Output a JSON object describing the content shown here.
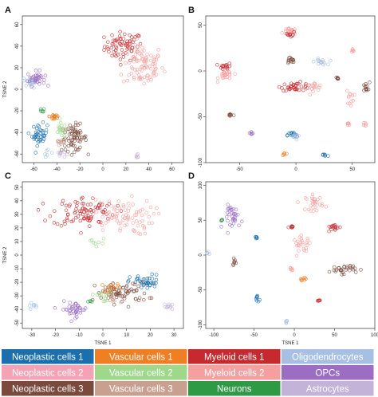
{
  "chart_data": [
    {
      "type": "scatter",
      "panel": "A",
      "xlabel": "",
      "ylabel": "TSNE 2",
      "xlim": [
        -70,
        70
      ],
      "ylim": [
        -68,
        68
      ],
      "xticks": [
        -60,
        -40,
        -20,
        0,
        20,
        40,
        60
      ],
      "yticks": [
        -60,
        -40,
        -20,
        0,
        20,
        40,
        60
      ],
      "clusters": [
        {
          "cell_type": "Myeloid cells 1",
          "center": [
            18,
            40
          ],
          "spread": [
            15,
            12
          ],
          "n": 70
        },
        {
          "cell_type": "Myeloid cells 2",
          "center": [
            35,
            22
          ],
          "spread": [
            16,
            18
          ],
          "n": 90
        },
        {
          "cell_type": "Oligodendrocytes",
          "center": [
            -63,
            7
          ],
          "spread": [
            6,
            5
          ],
          "n": 20
        },
        {
          "cell_type": "Oligodendrocytes",
          "center": [
            -48,
            -58
          ],
          "spread": [
            3,
            4
          ],
          "n": 6
        },
        {
          "cell_type": "OPCs",
          "center": [
            -58,
            10
          ],
          "spread": [
            7,
            6
          ],
          "n": 35
        },
        {
          "cell_type": "Astrocytes",
          "center": [
            -37,
            -60
          ],
          "spread": [
            4,
            3
          ],
          "n": 10
        },
        {
          "cell_type": "Astrocytes",
          "center": [
            30,
            -62
          ],
          "spread": [
            2,
            2
          ],
          "n": 6
        },
        {
          "cell_type": "Neoplastic cells 1",
          "center": [
            -55,
            -42
          ],
          "spread": [
            6,
            9
          ],
          "n": 40
        },
        {
          "cell_type": "Neoplastic cells 3",
          "center": [
            -25,
            -45
          ],
          "spread": [
            10,
            11
          ],
          "n": 70
        },
        {
          "cell_type": "Vascular cells 1",
          "center": [
            -42,
            -25
          ],
          "spread": [
            4,
            4
          ],
          "n": 18
        },
        {
          "cell_type": "Vascular cells 2",
          "center": [
            -36,
            -38
          ],
          "spread": [
            5,
            6
          ],
          "n": 18
        },
        {
          "cell_type": "Neurons",
          "center": [
            -53,
            -20
          ],
          "spread": [
            2,
            2
          ],
          "n": 6
        },
        {
          "cell_type": "Vascular cells 3",
          "center": [
            -38,
            -50
          ],
          "spread": [
            4,
            4
          ],
          "n": 10
        }
      ]
    },
    {
      "type": "scatter",
      "panel": "B",
      "xlabel": "",
      "ylabel": "",
      "xlim": [
        -80,
        70
      ],
      "ylim": [
        -100,
        60
      ],
      "xticks": [
        -50,
        0,
        50
      ],
      "yticks": [
        -100,
        -50,
        0,
        50
      ],
      "clusters": [
        {
          "cell_type": "Myeloid cells 2",
          "center": [
            -5,
            43
          ],
          "spread": [
            5,
            3
          ],
          "n": 20
        },
        {
          "cell_type": "Myeloid cells 1",
          "center": [
            -5,
            40
          ],
          "spread": [
            4,
            3
          ],
          "n": 10
        },
        {
          "cell_type": "Myeloid cells 2",
          "center": [
            -62,
            -5
          ],
          "spread": [
            6,
            5
          ],
          "n": 25
        },
        {
          "cell_type": "Myeloid cells 1",
          "center": [
            -62,
            5
          ],
          "spread": [
            5,
            3
          ],
          "n": 15
        },
        {
          "cell_type": "Myeloid cells 1",
          "center": [
            0,
            -17
          ],
          "spread": [
            12,
            4
          ],
          "n": 35
        },
        {
          "cell_type": "Myeloid cells 2",
          "center": [
            15,
            -17
          ],
          "spread": [
            8,
            4
          ],
          "n": 20
        },
        {
          "cell_type": "Oligodendrocytes",
          "center": [
            22,
            10
          ],
          "spread": [
            5,
            3
          ],
          "n": 15
        },
        {
          "cell_type": "Neoplastic cells 3",
          "center": [
            -5,
            11
          ],
          "spread": [
            4,
            4
          ],
          "n": 15
        },
        {
          "cell_type": "Myeloid cells 2",
          "center": [
            48,
            -28
          ],
          "spread": [
            3,
            8
          ],
          "n": 12
        },
        {
          "cell_type": "Neoplastic cells 3",
          "center": [
            62,
            -18
          ],
          "spread": [
            3,
            5
          ],
          "n": 12
        },
        {
          "cell_type": "Myeloid cells 2",
          "center": [
            50,
            22
          ],
          "spread": [
            2,
            2
          ],
          "n": 6
        },
        {
          "cell_type": "Neoplastic cells 1",
          "center": [
            -3,
            -70
          ],
          "spread": [
            4,
            3
          ],
          "n": 15
        },
        {
          "cell_type": "Oligodendrocytes",
          "center": [
            -1,
            -72
          ],
          "spread": [
            4,
            3
          ],
          "n": 10
        },
        {
          "cell_type": "Neoplastic cells 3",
          "center": [
            -58,
            -48
          ],
          "spread": [
            3,
            2
          ],
          "n": 8
        },
        {
          "cell_type": "Neoplastic cells 3",
          "center": [
            37,
            -8
          ],
          "spread": [
            2,
            2
          ],
          "n": 6
        },
        {
          "cell_type": "OPCs",
          "center": [
            -40,
            -68
          ],
          "spread": [
            2,
            2
          ],
          "n": 6
        },
        {
          "cell_type": "Myeloid cells 2",
          "center": [
            47,
            -58
          ],
          "spread": [
            2,
            2
          ],
          "n": 6
        },
        {
          "cell_type": "Myeloid cells 2",
          "center": [
            62,
            -58
          ],
          "spread": [
            2,
            2
          ],
          "n": 6
        },
        {
          "cell_type": "Neoplastic cells 1",
          "center": [
            25,
            -92
          ],
          "spread": [
            3,
            2
          ],
          "n": 6
        },
        {
          "cell_type": "Vascular cells 1",
          "center": [
            -10,
            -90
          ],
          "spread": [
            2,
            2
          ],
          "n": 5
        }
      ]
    },
    {
      "type": "scatter",
      "panel": "C",
      "xlabel": "TSNE 1",
      "ylabel": "TSNE 2",
      "xlim": [
        -34,
        34
      ],
      "ylim": [
        -54,
        54
      ],
      "xticks": [
        -30,
        -20,
        -10,
        0,
        10,
        20,
        30
      ],
      "yticks": [
        -50,
        -40,
        -30,
        -20,
        -10,
        0,
        10,
        20,
        30,
        40,
        50
      ],
      "clusters": [
        {
          "cell_type": "Myeloid cells 1",
          "center": [
            -8,
            32
          ],
          "spread": [
            12,
            10
          ],
          "n": 90
        },
        {
          "cell_type": "Myeloid cells 2",
          "center": [
            8,
            28
          ],
          "spread": [
            12,
            12
          ],
          "n": 80
        },
        {
          "cell_type": "Vascular cells 2",
          "center": [
            -2,
            10
          ],
          "spread": [
            3,
            3
          ],
          "n": 8
        },
        {
          "cell_type": "Neoplastic cells 1",
          "center": [
            18,
            -20
          ],
          "spread": [
            6,
            5
          ],
          "n": 40
        },
        {
          "cell_type": "Neoplastic cells 3",
          "center": [
            8,
            -28
          ],
          "spread": [
            10,
            7
          ],
          "n": 70
        },
        {
          "cell_type": "Vascular cells 1",
          "center": [
            4,
            -24
          ],
          "spread": [
            4,
            3
          ],
          "n": 15
        },
        {
          "cell_type": "Vascular cells 2",
          "center": [
            0,
            -30
          ],
          "spread": [
            4,
            4
          ],
          "n": 15
        },
        {
          "cell_type": "Vascular cells 3",
          "center": [
            4,
            -33
          ],
          "spread": [
            3,
            3
          ],
          "n": 10
        },
        {
          "cell_type": "OPCs",
          "center": [
            -12,
            -40
          ],
          "spread": [
            5,
            5
          ],
          "n": 40
        },
        {
          "cell_type": "Oligodendrocytes",
          "center": [
            -30,
            -37
          ],
          "spread": [
            2,
            2
          ],
          "n": 8
        },
        {
          "cell_type": "Astrocytes",
          "center": [
            28,
            -38
          ],
          "spread": [
            2,
            2
          ],
          "n": 10
        },
        {
          "cell_type": "Neurons",
          "center": [
            -5,
            -34
          ],
          "spread": [
            1,
            1
          ],
          "n": 4
        }
      ]
    },
    {
      "type": "scatter",
      "panel": "D",
      "xlabel": "TSNE 1",
      "ylabel": "",
      "xlim": [
        -110,
        100
      ],
      "ylim": [
        -105,
        105
      ],
      "xticks": [
        -100,
        -50,
        0,
        50,
        100
      ],
      "yticks": [
        -100,
        -50,
        0,
        50,
        100
      ],
      "clusters": [
        {
          "cell_type": "OPCs",
          "center": [
            -75,
            55
          ],
          "spread": [
            10,
            15
          ],
          "n": 35
        },
        {
          "cell_type": "Myeloid cells 2",
          "center": [
            25,
            75
          ],
          "spread": [
            10,
            10
          ],
          "n": 30
        },
        {
          "cell_type": "Myeloid cells 2",
          "center": [
            10,
            15
          ],
          "spread": [
            10,
            10
          ],
          "n": 25
        },
        {
          "cell_type": "Myeloid cells 1",
          "center": [
            48,
            40
          ],
          "spread": [
            8,
            5
          ],
          "n": 15
        },
        {
          "cell_type": "Myeloid cells 1",
          "center": [
            -2,
            40
          ],
          "spread": [
            4,
            2
          ],
          "n": 8
        },
        {
          "cell_type": "Neoplastic cells 3",
          "center": [
            60,
            -20
          ],
          "spread": [
            15,
            6
          ],
          "n": 30
        },
        {
          "cell_type": "Vascular cells 1",
          "center": [
            10,
            -35
          ],
          "spread": [
            4,
            4
          ],
          "n": 8
        },
        {
          "cell_type": "Neoplastic cells 3",
          "center": [
            -74,
            -12
          ],
          "spread": [
            2,
            6
          ],
          "n": 8
        },
        {
          "cell_type": "Neoplastic cells 1",
          "center": [
            -46,
            -62
          ],
          "spread": [
            2,
            5
          ],
          "n": 8
        },
        {
          "cell_type": "Neoplastic cells 1",
          "center": [
            -47,
            25
          ],
          "spread": [
            2,
            2
          ],
          "n": 6
        },
        {
          "cell_type": "Myeloid cells 1",
          "center": [
            30,
            -65
          ],
          "spread": [
            2,
            3
          ],
          "n": 6
        },
        {
          "cell_type": "Oligodendrocytes",
          "center": [
            -108,
            2
          ],
          "spread": [
            2,
            2
          ],
          "n": 5
        },
        {
          "cell_type": "Oligodendrocytes",
          "center": [
            -10,
            -95
          ],
          "spread": [
            2,
            2
          ],
          "n": 5
        },
        {
          "cell_type": "Neurons",
          "center": [
            -90,
            50
          ],
          "spread": [
            1,
            1
          ],
          "n": 4
        },
        {
          "cell_type": "Myeloid cells 2",
          "center": [
            -4,
            -20
          ],
          "spread": [
            2,
            3
          ],
          "n": 6
        }
      ]
    }
  ],
  "legend": [
    {
      "label": "Neoplastic cells 1",
      "color": "#1b6fad"
    },
    {
      "label": "Vascular cells 1",
      "color": "#f07e22"
    },
    {
      "label": "Myeloid cells 1",
      "color": "#c62a2e"
    },
    {
      "label": "Oligodendrocytes",
      "color": "#a6bfe3"
    },
    {
      "label": "Neoplastic cells 2",
      "color": "#f4a3b5"
    },
    {
      "label": "Vascular cells 2",
      "color": "#9fd78b"
    },
    {
      "label": "Myeloid cells 2",
      "color": "#f4a0a0"
    },
    {
      "label": "OPCs",
      "color": "#9b6ec4"
    },
    {
      "label": "Neoplastic cells 3",
      "color": "#7a4a3c"
    },
    {
      "label": "Vascular cells 3",
      "color": "#c9a090"
    },
    {
      "label": "Neurons",
      "color": "#2f9a46"
    },
    {
      "label": "Astrocytes",
      "color": "#c3b3d8"
    }
  ]
}
